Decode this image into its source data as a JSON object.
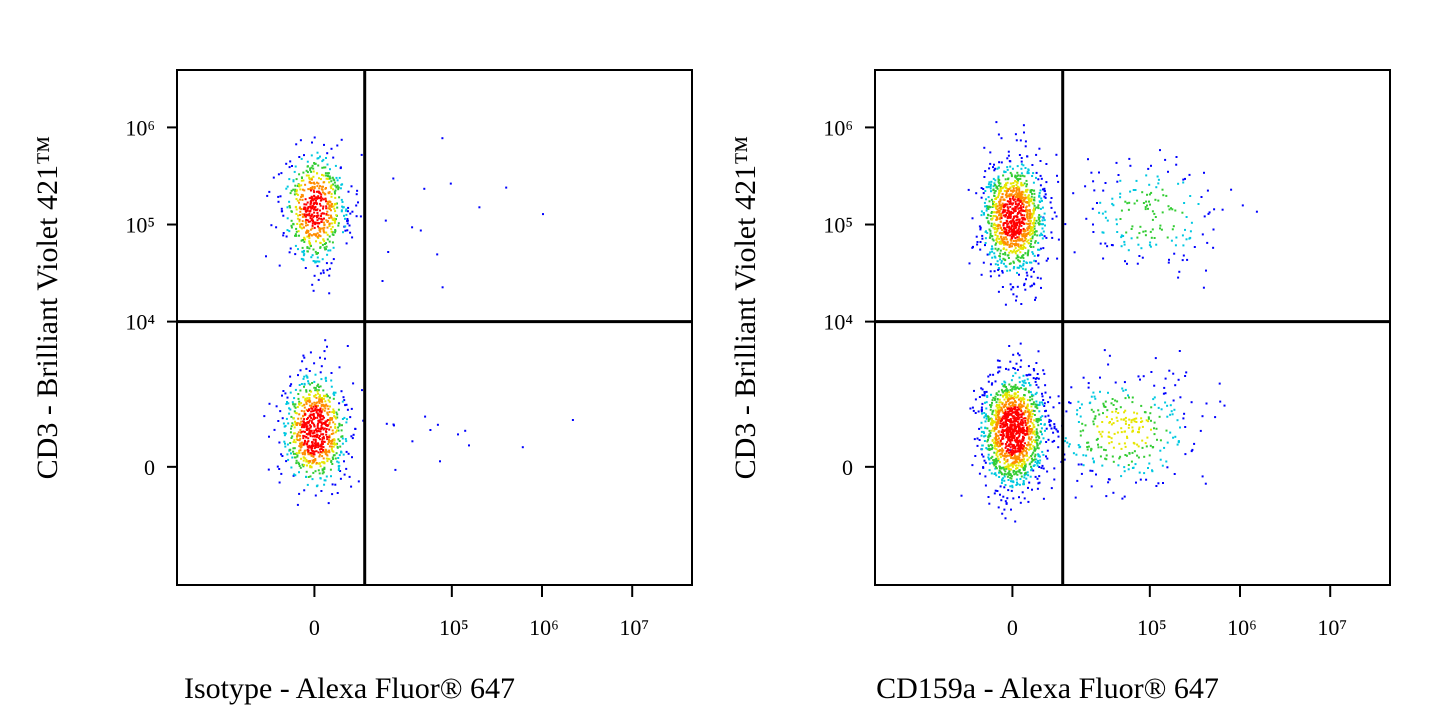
{
  "chart_data": [
    {
      "type": "density",
      "x_label": "Isotype - Alexa Fluor® 647",
      "y_label": "CD3 - Brilliant Violet 421™",
      "xlim": [
        -100000,
        46000000
      ],
      "ylim": [
        -5250,
        3900000
      ],
      "xticks": [
        0,
        {
          "value": 100000,
          "label": "10⁵"
        },
        {
          "value": 1000000,
          "label": "10⁶"
        },
        {
          "value": 10000000,
          "label": "10⁷"
        }
      ],
      "yticks": [
        0,
        {
          "value": 10000,
          "label": "10⁴"
        },
        {
          "value": 100000,
          "label": "10⁵"
        },
        {
          "value": 1000000,
          "label": "10⁶"
        }
      ],
      "gate": {
        "x": 10000,
        "y": 10000
      },
      "populations": [
        {
          "x": 0,
          "y": 150000,
          "events": 2500
        },
        {
          "x": 0,
          "y": 640,
          "events": 3200
        },
        {
          "x": 40000,
          "y": 100000,
          "events": 30
        },
        {
          "x": 40000,
          "y": 640,
          "events": 30
        }
      ]
    },
    {
      "type": "density",
      "x_label": "CD159a - Alexa Fluor® 647",
      "y_label": "CD3 - Brilliant Violet 421™",
      "xlim": [
        -100000,
        46000000
      ],
      "ylim": [
        -5250,
        3900000
      ],
      "xticks": [
        0,
        {
          "value": 100000,
          "label": "10⁵"
        },
        {
          "value": 1000000,
          "label": "10⁶"
        },
        {
          "value": 10000000,
          "label": "10⁷"
        }
      ],
      "yticks": [
        0,
        {
          "value": 10000,
          "label": "10⁴"
        },
        {
          "value": 100000,
          "label": "10⁵"
        },
        {
          "value": 1000000,
          "label": "10⁶"
        }
      ],
      "gate": {
        "x": 10000,
        "y": 10000
      },
      "populations": [
        {
          "x": 0,
          "y": 120000,
          "events": 4500
        },
        {
          "x": 100000,
          "y": 130000,
          "events": 700
        },
        {
          "x": 0,
          "y": 640,
          "events": 5500
        },
        {
          "x": 50000,
          "y": 640,
          "events": 1300
        }
      ]
    }
  ]
}
